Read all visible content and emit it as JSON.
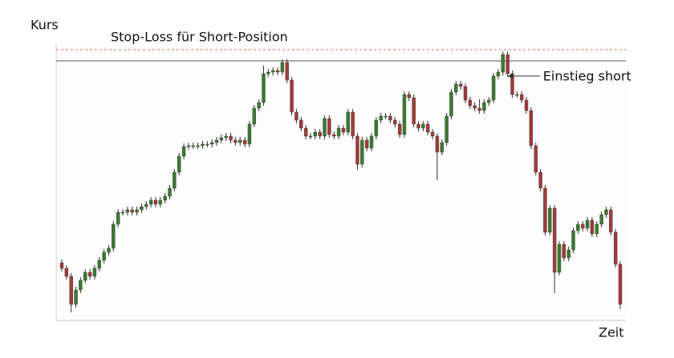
{
  "chart_data": {
    "type": "candlestick",
    "y_label": "Kurs",
    "x_label": "Zeit",
    "ylim": [
      0,
      345
    ],
    "up_color": "#3d7a2e",
    "down_color": "#a23a3a",
    "stop_loss": {
      "label": "Stop-Loss für Short-Position",
      "value": 338,
      "color": "#e06666"
    },
    "reference_line": {
      "value": 324,
      "color": "#555555"
    },
    "annotation": {
      "label": "Einstieg short",
      "value": 305,
      "index": 94
    },
    "open": [
      72,
      65,
      55,
      20,
      38,
      50,
      60,
      55,
      65,
      75,
      85,
      90,
      120,
      135,
      135,
      138,
      135,
      138,
      142,
      145,
      150,
      145,
      150,
      155,
      165,
      185,
      205,
      217,
      218,
      218,
      218,
      220,
      220,
      222,
      225,
      228,
      230,
      225,
      222,
      225,
      220,
      245,
      265,
      272,
      308,
      310,
      312,
      310,
      322,
      300,
      260,
      250,
      240,
      230,
      230,
      235,
      230,
      252,
      232,
      230,
      240,
      235,
      260,
      230,
      195,
      225,
      215,
      230,
      250,
      255,
      255,
      250,
      245,
      232,
      282,
      278,
      245,
      240,
      245,
      235,
      230,
      210,
      222,
      255,
      285,
      295,
      292,
      275,
      268,
      265,
      262,
      272,
      275,
      305,
      310,
      332,
      308,
      282,
      282,
      275,
      262,
      218,
      185,
      165,
      110,
      140,
      60,
      95,
      78,
      88,
      112,
      120,
      115,
      125,
      108,
      120,
      132,
      138,
      110,
      70
    ],
    "high": [
      76,
      69,
      59,
      42,
      54,
      64,
      64,
      69,
      79,
      89,
      94,
      124,
      139,
      139,
      142,
      142,
      142,
      146,
      149,
      154,
      154,
      154,
      159,
      169,
      189,
      209,
      221,
      222,
      222,
      222,
      224,
      224,
      226,
      229,
      232,
      234,
      234,
      229,
      229,
      229,
      249,
      269,
      276,
      318,
      314,
      316,
      316,
      326,
      326,
      304,
      264,
      254,
      244,
      234,
      239,
      239,
      256,
      256,
      236,
      244,
      244,
      264,
      264,
      234,
      229,
      229,
      234,
      254,
      259,
      259,
      259,
      254,
      249,
      286,
      286,
      282,
      249,
      249,
      249,
      239,
      234,
      226,
      259,
      289,
      299,
      299,
      296,
      279,
      272,
      276,
      276,
      279,
      309,
      314,
      336,
      336,
      312,
      286,
      286,
      279,
      266,
      222,
      189,
      169,
      144,
      144,
      99,
      99,
      92,
      116,
      124,
      124,
      129,
      129,
      124,
      136,
      142,
      142,
      114,
      74
    ],
    "low": [
      61,
      51,
      10,
      16,
      34,
      46,
      51,
      51,
      61,
      71,
      81,
      86,
      116,
      131,
      131,
      131,
      131,
      134,
      138,
      141,
      141,
      141,
      146,
      151,
      161,
      181,
      201,
      213,
      214,
      214,
      214,
      216,
      216,
      218,
      221,
      224,
      221,
      218,
      218,
      216,
      216,
      241,
      261,
      268,
      304,
      306,
      306,
      306,
      296,
      256,
      246,
      236,
      226,
      226,
      226,
      226,
      226,
      228,
      226,
      226,
      231,
      231,
      226,
      188,
      191,
      211,
      211,
      226,
      246,
      251,
      246,
      241,
      228,
      228,
      274,
      241,
      236,
      236,
      231,
      226,
      175,
      206,
      218,
      251,
      281,
      288,
      271,
      264,
      261,
      258,
      258,
      268,
      271,
      301,
      306,
      304,
      278,
      278,
      271,
      258,
      214,
      181,
      161,
      106,
      106,
      34,
      56,
      74,
      74,
      84,
      108,
      111,
      111,
      104,
      104,
      116,
      128,
      106,
      66,
      14
    ],
    "close": [
      65,
      55,
      20,
      38,
      50,
      60,
      55,
      65,
      75,
      85,
      90,
      120,
      135,
      135,
      138,
      135,
      138,
      142,
      145,
      150,
      145,
      150,
      155,
      165,
      185,
      205,
      217,
      218,
      218,
      218,
      220,
      220,
      222,
      225,
      228,
      230,
      225,
      222,
      225,
      220,
      245,
      265,
      272,
      308,
      310,
      312,
      310,
      322,
      300,
      260,
      250,
      240,
      230,
      230,
      235,
      230,
      252,
      232,
      230,
      240,
      235,
      260,
      230,
      195,
      225,
      215,
      230,
      250,
      255,
      255,
      250,
      245,
      232,
      282,
      278,
      245,
      240,
      245,
      235,
      230,
      210,
      222,
      255,
      285,
      295,
      292,
      275,
      268,
      265,
      262,
      272,
      275,
      305,
      310,
      332,
      308,
      282,
      282,
      275,
      262,
      218,
      185,
      165,
      110,
      140,
      60,
      95,
      78,
      88,
      112,
      120,
      115,
      125,
      108,
      120,
      132,
      138,
      110,
      70,
      20
    ]
  }
}
